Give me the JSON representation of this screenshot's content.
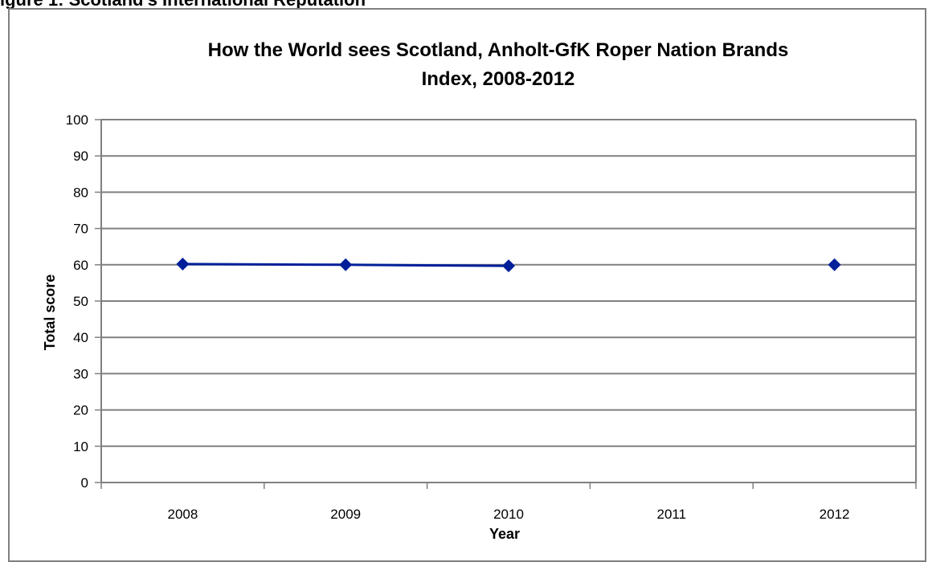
{
  "figure_heading": "igure 1: Scotland's International Reputation",
  "chart_data": {
    "type": "line",
    "title_lines": [
      "How the World sees Scotland, Anholt-GfK Roper Nation Brands",
      "Index, 2008-2012"
    ],
    "xlabel": "Year",
    "ylabel": "Total score",
    "categories": [
      "2008",
      "2009",
      "2010",
      "2011",
      "2012"
    ],
    "series": [
      {
        "color": "#001f99",
        "values": [
          60.2,
          60.0,
          59.7,
          null,
          60.0
        ]
      }
    ],
    "ylim": [
      0,
      100
    ],
    "yticks": [
      0,
      10,
      20,
      30,
      40,
      50,
      60,
      70,
      80,
      90,
      100
    ],
    "grid": true,
    "legend": "none"
  }
}
